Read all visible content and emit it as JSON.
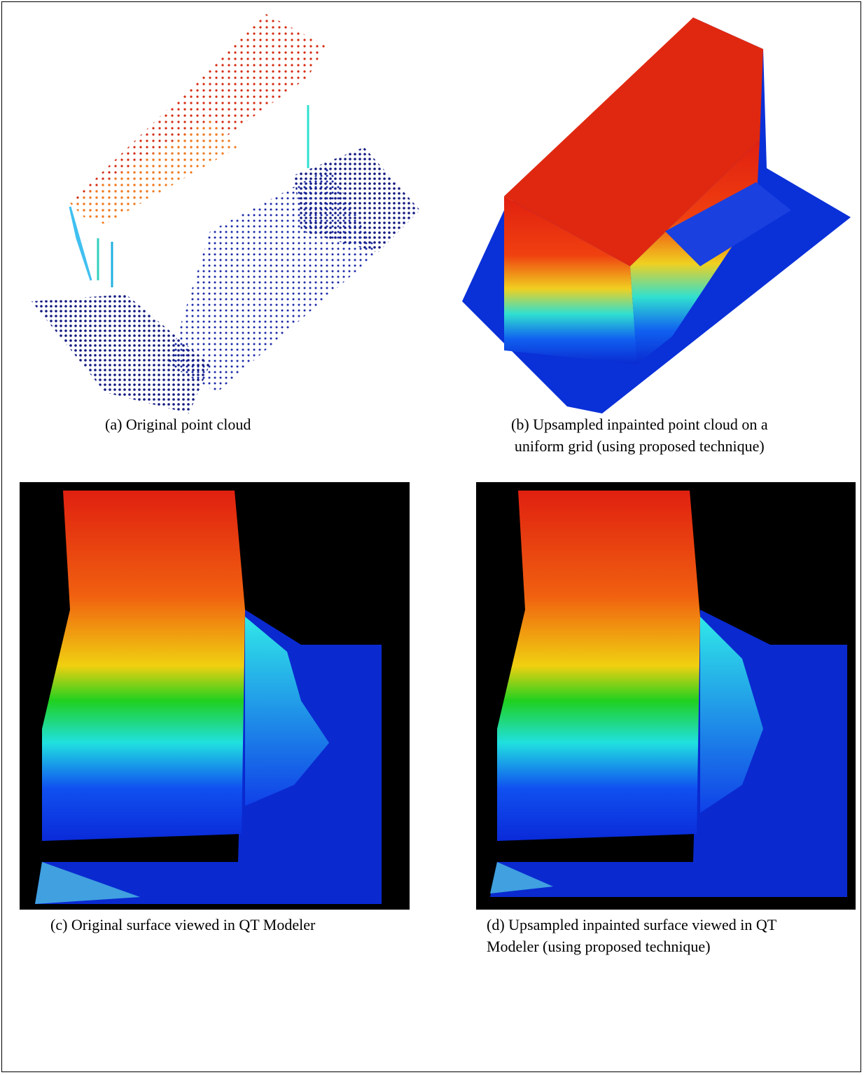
{
  "panels": [
    {
      "caption_lines": [
        "(a) Original point cloud"
      ]
    },
    {
      "caption_lines": [
        "(b) Upsampled inpainted point cloud on a",
        "uniform grid (using proposed technique)"
      ]
    },
    {
      "caption_lines": [
        "(c) Original surface viewed in QT Modeler"
      ]
    },
    {
      "caption_lines": [
        "(d) Upsampled inpainted surface viewed in QT",
        "Modeler (using proposed technique)"
      ]
    }
  ]
}
